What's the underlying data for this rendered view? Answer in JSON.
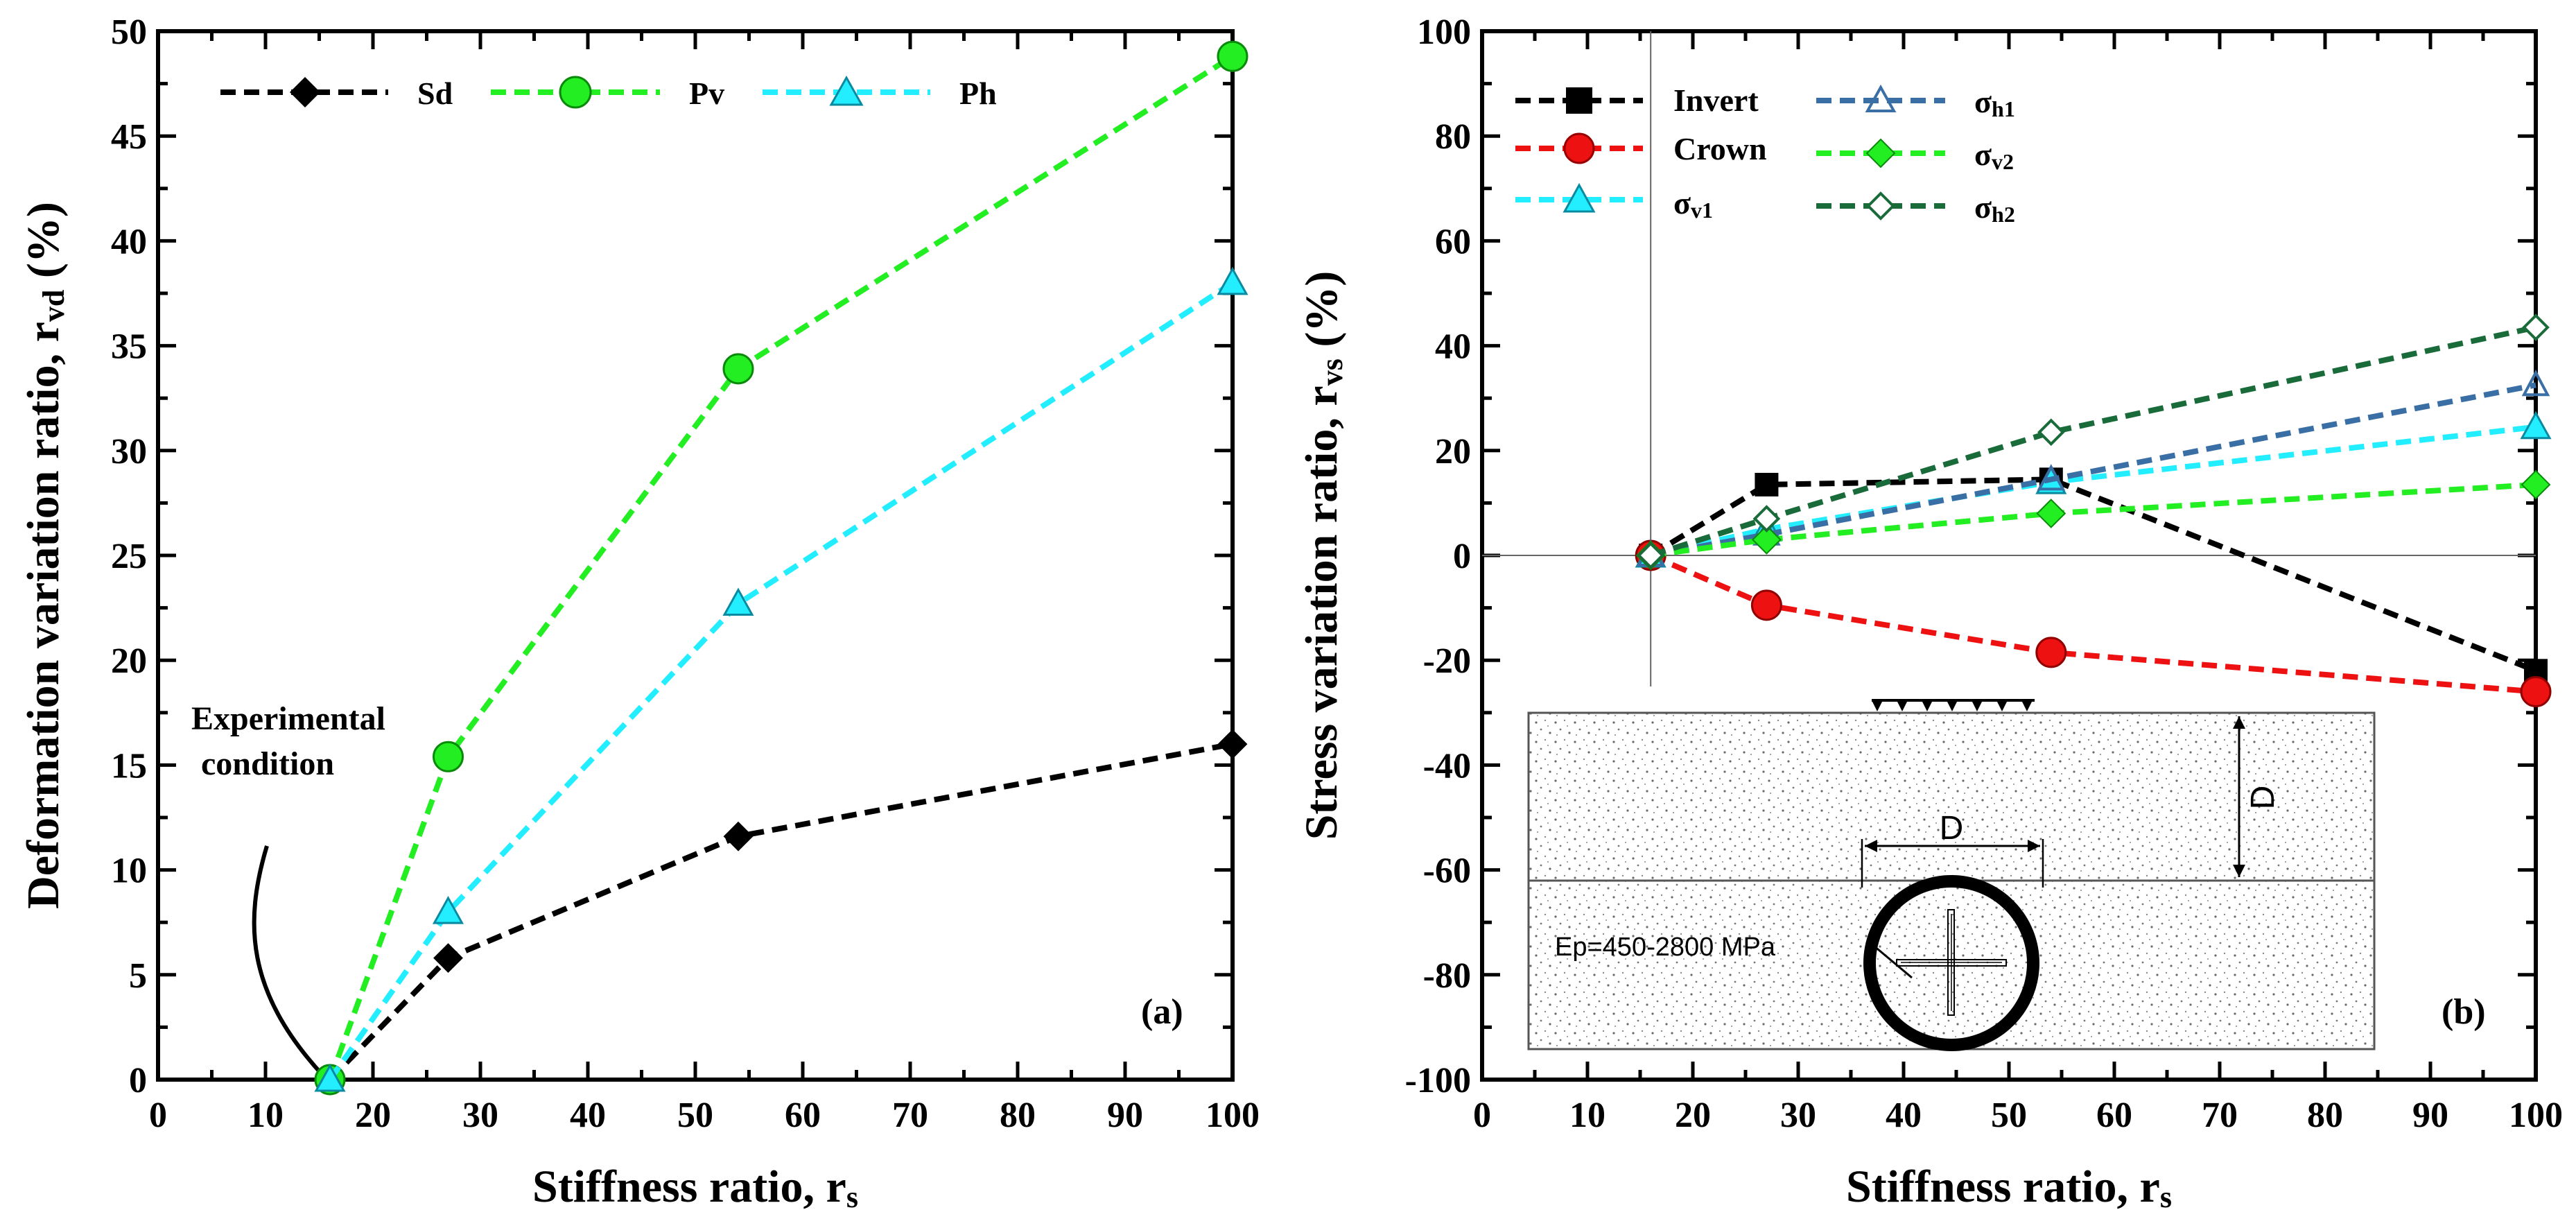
{
  "chart_data": [
    {
      "id": "a",
      "type": "line",
      "panel_label": "(a)",
      "xlabel_main": "Stiffness ratio, r",
      "xlabel_sub": "s",
      "ylabel_main": "Deformation variation ratio, r",
      "ylabel_sub": "vd",
      "ylabel_unit": " (%)",
      "xlim": [
        0,
        100
      ],
      "ylim": [
        0,
        50
      ],
      "xticks": [
        "0",
        "10",
        "20",
        "30",
        "40",
        "50",
        "60",
        "70",
        "80",
        "90",
        "100"
      ],
      "yticks": [
        "0",
        "5",
        "10",
        "15",
        "20",
        "25",
        "30",
        "35",
        "40",
        "45",
        "50"
      ],
      "x": [
        16,
        27,
        54,
        100
      ],
      "series": [
        {
          "name": "Sd",
          "values": [
            0,
            5.8,
            11.6,
            16.0
          ],
          "color": "#000000",
          "marker": "diamond"
        },
        {
          "name": "Pv",
          "values": [
            0,
            15.4,
            33.9,
            48.8
          ],
          "color": "#22ee22",
          "marker": "circle"
        },
        {
          "name": "Ph",
          "values": [
            0,
            8.0,
            22.7,
            38.0
          ],
          "color": "#22eeff",
          "marker": "triangle"
        }
      ],
      "annotation": {
        "line1": "Experimental",
        "line2": "condition"
      }
    },
    {
      "id": "b",
      "type": "line",
      "panel_label": "(b)",
      "xlabel_main": "Stiffness ratio, r",
      "xlabel_sub": "s",
      "ylabel_main": "Stress variation ratio, r",
      "ylabel_sub": "vs",
      "ylabel_unit": " (%)",
      "xlim": [
        0,
        100
      ],
      "ylim": [
        -100,
        100
      ],
      "xticks": [
        "0",
        "10",
        "20",
        "30",
        "40",
        "50",
        "60",
        "70",
        "80",
        "90",
        "100"
      ],
      "yticks": [
        "-100",
        "-80",
        "-60",
        "-40",
        "-20",
        "0",
        "20",
        "40",
        "60",
        "80",
        "100"
      ],
      "x": [
        16,
        27,
        54,
        100
      ],
      "series": [
        {
          "name": "Invert",
          "label_main": "Invert",
          "label_sub": "",
          "values": [
            0,
            13.5,
            14.5,
            -22
          ],
          "color": "#000000",
          "marker": "square"
        },
        {
          "name": "Crown",
          "label_main": "Crown",
          "label_sub": "",
          "values": [
            0,
            -9.5,
            -18.5,
            -26
          ],
          "color": "#ee1111",
          "marker": "circle"
        },
        {
          "name": "σv1",
          "label_main": "σ",
          "label_sub": "v1",
          "values": [
            0,
            5,
            14,
            24.5
          ],
          "color": "#22eeff",
          "marker": "triangle"
        },
        {
          "name": "σh1",
          "label_main": "σ",
          "label_sub": "h1",
          "values": [
            0,
            4,
            14.5,
            32.5
          ],
          "color": "#3a6fa5",
          "marker": "triangle-open"
        },
        {
          "name": "σv2",
          "label_main": "σ",
          "label_sub": "v2",
          "values": [
            0,
            3,
            8,
            13.5
          ],
          "color": "#22ee22",
          "marker": "diamond"
        },
        {
          "name": "σh2",
          "label_main": "σ",
          "label_sub": "h2",
          "values": [
            0,
            7,
            23.5,
            43.5
          ],
          "color": "#1a6b3a",
          "marker": "diamond-open"
        }
      ],
      "inset": {
        "dim_width": "D",
        "dim_depth": "D",
        "pipe_label": "Ep=450-2800 MPa"
      }
    }
  ]
}
